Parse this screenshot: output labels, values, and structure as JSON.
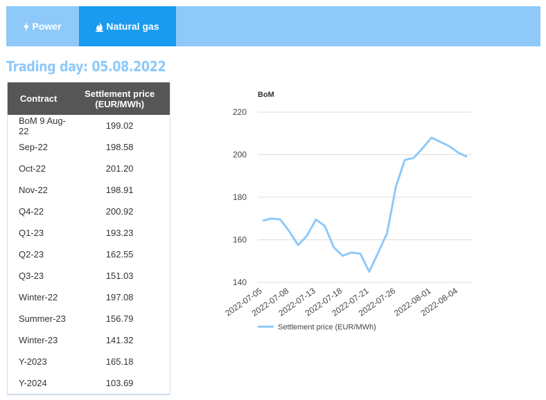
{
  "tabs": [
    "Power",
    "Natural gas"
  ],
  "trading_day": "Trading day: 05.08.2022",
  "table": {
    "header": [
      "Contract",
      "Settlement price (EUR/MWh)"
    ],
    "rows": [
      [
        "BoM 9 Aug-22",
        "199.02"
      ],
      [
        "Sep-22",
        "198.58"
      ],
      [
        "Oct-22",
        "201.20"
      ],
      [
        "Nov-22",
        "198.91"
      ],
      [
        "Q4-22",
        "200.92"
      ],
      [
        "Q1-23",
        "193.23"
      ],
      [
        "Q2-23",
        "162.55"
      ],
      [
        "Q3-23",
        "151.03"
      ],
      [
        "Winter-22",
        "197.08"
      ],
      [
        "Summer-23",
        "156.79"
      ],
      [
        "Winter-23",
        "141.32"
      ],
      [
        "Y-2023",
        "165.18"
      ],
      [
        "Y-2024",
        "103.69"
      ]
    ]
  },
  "chart_data": {
    "type": "line",
    "title": "BoM",
    "categories": [
      "2022-07-05",
      null,
      null,
      "2022-07-08",
      null,
      null,
      "2022-07-13",
      null,
      null,
      "2022-07-18",
      null,
      null,
      "2022-07-21",
      null,
      null,
      "2022-07-26",
      null,
      null,
      null,
      "2022-08-01",
      null,
      null,
      "2022-08-04",
      null
    ],
    "series": [
      {
        "name": "Settlement price (EUR/MWh)",
        "color": "#8ec9f9",
        "values": [
          169,
          170,
          169.5,
          164,
          157.5,
          162,
          169.5,
          166.5,
          156.5,
          152.5,
          154,
          153.5,
          145,
          154,
          163,
          185,
          197.5,
          198.5,
          203,
          208,
          206,
          204,
          201,
          199.02
        ]
      }
    ],
    "ylim": [
      140,
      220
    ],
    "yticks": [
      140,
      160,
      180,
      200,
      220
    ],
    "grid": true
  }
}
